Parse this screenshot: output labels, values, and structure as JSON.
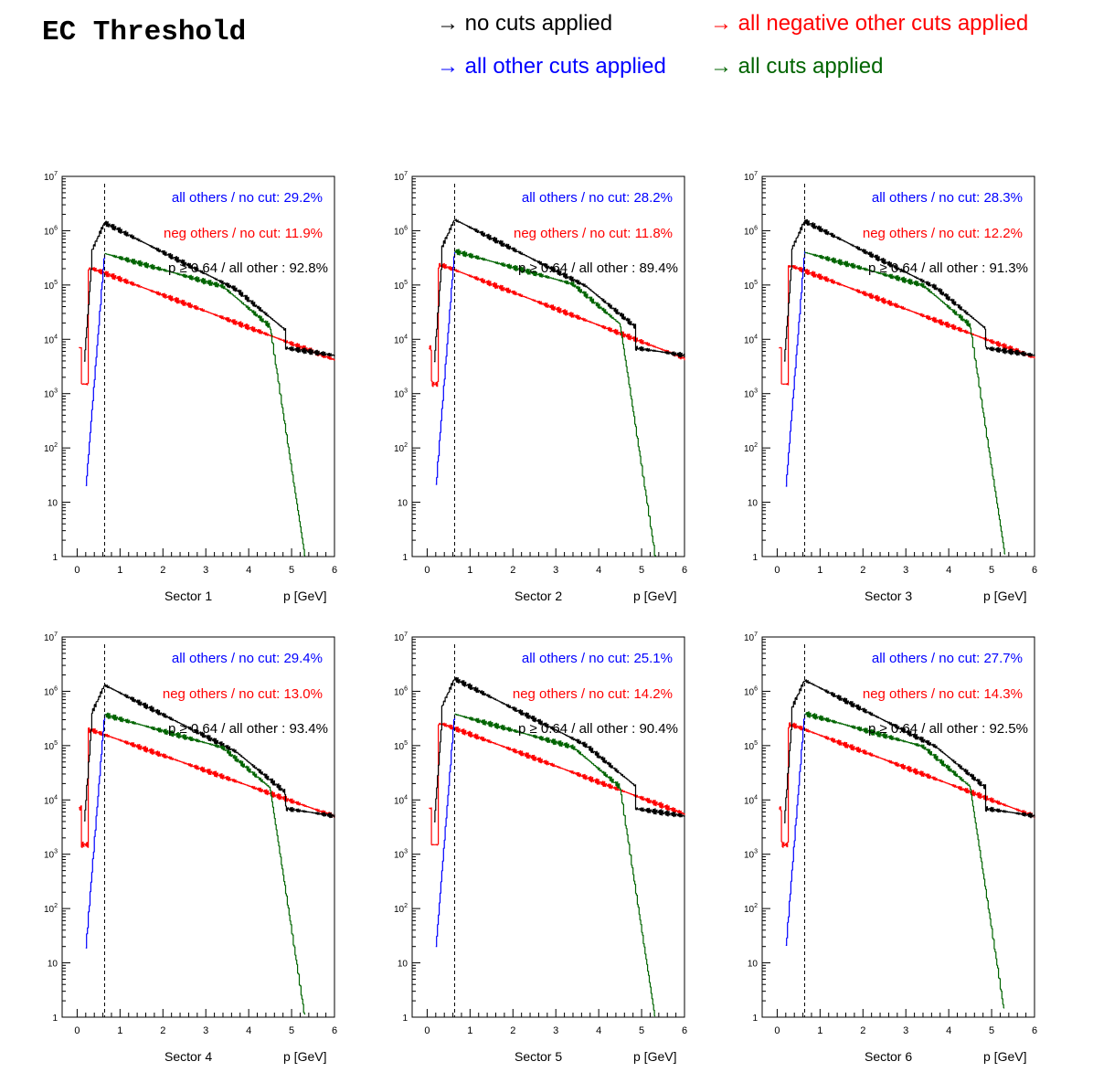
{
  "page_title": "EC Threshold",
  "legend": [
    {
      "arrow": "→",
      "text": "no cuts applied",
      "color": "#000000"
    },
    {
      "arrow": "→",
      "text": "all negative other cuts applied",
      "color": "#ff0000"
    },
    {
      "arrow": "→",
      "text": "all other cuts applied",
      "color": "#0000ff"
    },
    {
      "arrow": "→",
      "text": "all cuts applied",
      "color": "#006400"
    }
  ],
  "colors": {
    "no_cut": "#000000",
    "neg_others": "#ff0000",
    "all_others": "#0000ff",
    "all_cuts": "#006400"
  },
  "chart_data": [
    {
      "type": "line",
      "panel_label": "Sector 1",
      "xlabel": "p [GeV]",
      "x_range": [
        -0.35,
        6
      ],
      "y_range": [
        1,
        10000000
      ],
      "y_scale": "log",
      "x_ticks": [
        "0",
        "1",
        "2",
        "3",
        "4",
        "5",
        "6"
      ],
      "y_ticks": [
        "1",
        "10",
        "10^2",
        "10^3",
        "10^4",
        "10^5",
        "10^6",
        "10^7"
      ],
      "threshold": 0.64,
      "annotations": [
        {
          "label": "all others / no cut:",
          "value": "29.2%"
        },
        {
          "label": "neg others / no cut:",
          "value": "11.9%"
        },
        {
          "label": "p  ≥ 0.64 / all other :",
          "value": "92.8%"
        }
      ],
      "peaks": {
        "no_cut": 1400000,
        "all_others": 380000,
        "neg_others": 200000,
        "neg_tail": 4200
      }
    },
    {
      "type": "line",
      "panel_label": "Sector 2",
      "xlabel": "p [GeV]",
      "x_range": [
        -0.35,
        6
      ],
      "y_range": [
        1,
        10000000
      ],
      "y_scale": "log",
      "x_ticks": [
        "0",
        "1",
        "2",
        "3",
        "4",
        "5",
        "6"
      ],
      "y_ticks": [
        "1",
        "10",
        "10^2",
        "10^3",
        "10^4",
        "10^5",
        "10^6",
        "10^7"
      ],
      "threshold": 0.64,
      "annotations": [
        {
          "label": "all others / no cut:",
          "value": "28.2%"
        },
        {
          "label": "neg others / no cut:",
          "value": "11.8%"
        },
        {
          "label": "p  ≥ 0.64 / all other :",
          "value": "89.4%"
        }
      ],
      "peaks": {
        "no_cut": 1600000,
        "all_others": 420000,
        "neg_others": 230000,
        "neg_tail": 4500
      }
    },
    {
      "type": "line",
      "panel_label": "Sector 3",
      "xlabel": "p [GeV]",
      "x_range": [
        -0.35,
        6
      ],
      "y_range": [
        1,
        10000000
      ],
      "y_scale": "log",
      "x_ticks": [
        "0",
        "1",
        "2",
        "3",
        "4",
        "5",
        "6"
      ],
      "y_ticks": [
        "1",
        "10",
        "10^2",
        "10^3",
        "10^4",
        "10^5",
        "10^6",
        "10^7"
      ],
      "threshold": 0.64,
      "annotations": [
        {
          "label": "all others / no cut:",
          "value": "28.3%"
        },
        {
          "label": "neg others / no cut:",
          "value": "12.2%"
        },
        {
          "label": "p  ≥ 0.64 / all other :",
          "value": "91.3%"
        }
      ],
      "peaks": {
        "no_cut": 1500000,
        "all_others": 400000,
        "neg_others": 220000,
        "neg_tail": 4600
      }
    },
    {
      "type": "line",
      "panel_label": "Sector 4",
      "xlabel": "p [GeV]",
      "x_range": [
        -0.35,
        6
      ],
      "y_range": [
        1,
        10000000
      ],
      "y_scale": "log",
      "x_ticks": [
        "0",
        "1",
        "2",
        "3",
        "4",
        "5",
        "6"
      ],
      "y_ticks": [
        "1",
        "10",
        "10^2",
        "10^3",
        "10^4",
        "10^5",
        "10^6",
        "10^7"
      ],
      "threshold": 0.64,
      "annotations": [
        {
          "label": "all others / no cut:",
          "value": "29.4%"
        },
        {
          "label": "neg others / no cut:",
          "value": "13.0%"
        },
        {
          "label": "p  ≥ 0.64 / all other :",
          "value": "93.4%"
        }
      ],
      "peaks": {
        "no_cut": 1300000,
        "all_others": 370000,
        "neg_others": 190000,
        "neg_tail": 5000
      }
    },
    {
      "type": "line",
      "panel_label": "Sector 5",
      "xlabel": "p [GeV]",
      "x_range": [
        -0.35,
        6
      ],
      "y_range": [
        1,
        10000000
      ],
      "y_scale": "log",
      "x_ticks": [
        "0",
        "1",
        "2",
        "3",
        "4",
        "5",
        "6"
      ],
      "y_ticks": [
        "1",
        "10",
        "10^2",
        "10^3",
        "10^4",
        "10^5",
        "10^6",
        "10^7"
      ],
      "threshold": 0.64,
      "annotations": [
        {
          "label": "all others / no cut:",
          "value": "25.1%"
        },
        {
          "label": "neg others / no cut:",
          "value": "14.2%"
        },
        {
          "label": "p  ≥ 0.64 / all other :",
          "value": "90.4%"
        }
      ],
      "peaks": {
        "no_cut": 1700000,
        "all_others": 380000,
        "neg_others": 250000,
        "neg_tail": 5500
      }
    },
    {
      "type": "line",
      "panel_label": "Sector 6",
      "xlabel": "p [GeV]",
      "x_range": [
        -0.35,
        6
      ],
      "y_range": [
        1,
        10000000
      ],
      "y_scale": "log",
      "x_ticks": [
        "0",
        "1",
        "2",
        "3",
        "4",
        "5",
        "6"
      ],
      "y_ticks": [
        "1",
        "10",
        "10^2",
        "10^3",
        "10^4",
        "10^5",
        "10^6",
        "10^7"
      ],
      "threshold": 0.64,
      "annotations": [
        {
          "label": "all others / no cut:",
          "value": "27.7%"
        },
        {
          "label": "neg others / no cut:",
          "value": "14.3%"
        },
        {
          "label": "p  ≥ 0.64 / all other :",
          "value": "92.5%"
        }
      ],
      "peaks": {
        "no_cut": 1600000,
        "all_others": 390000,
        "neg_others": 240000,
        "neg_tail": 5000
      }
    }
  ]
}
